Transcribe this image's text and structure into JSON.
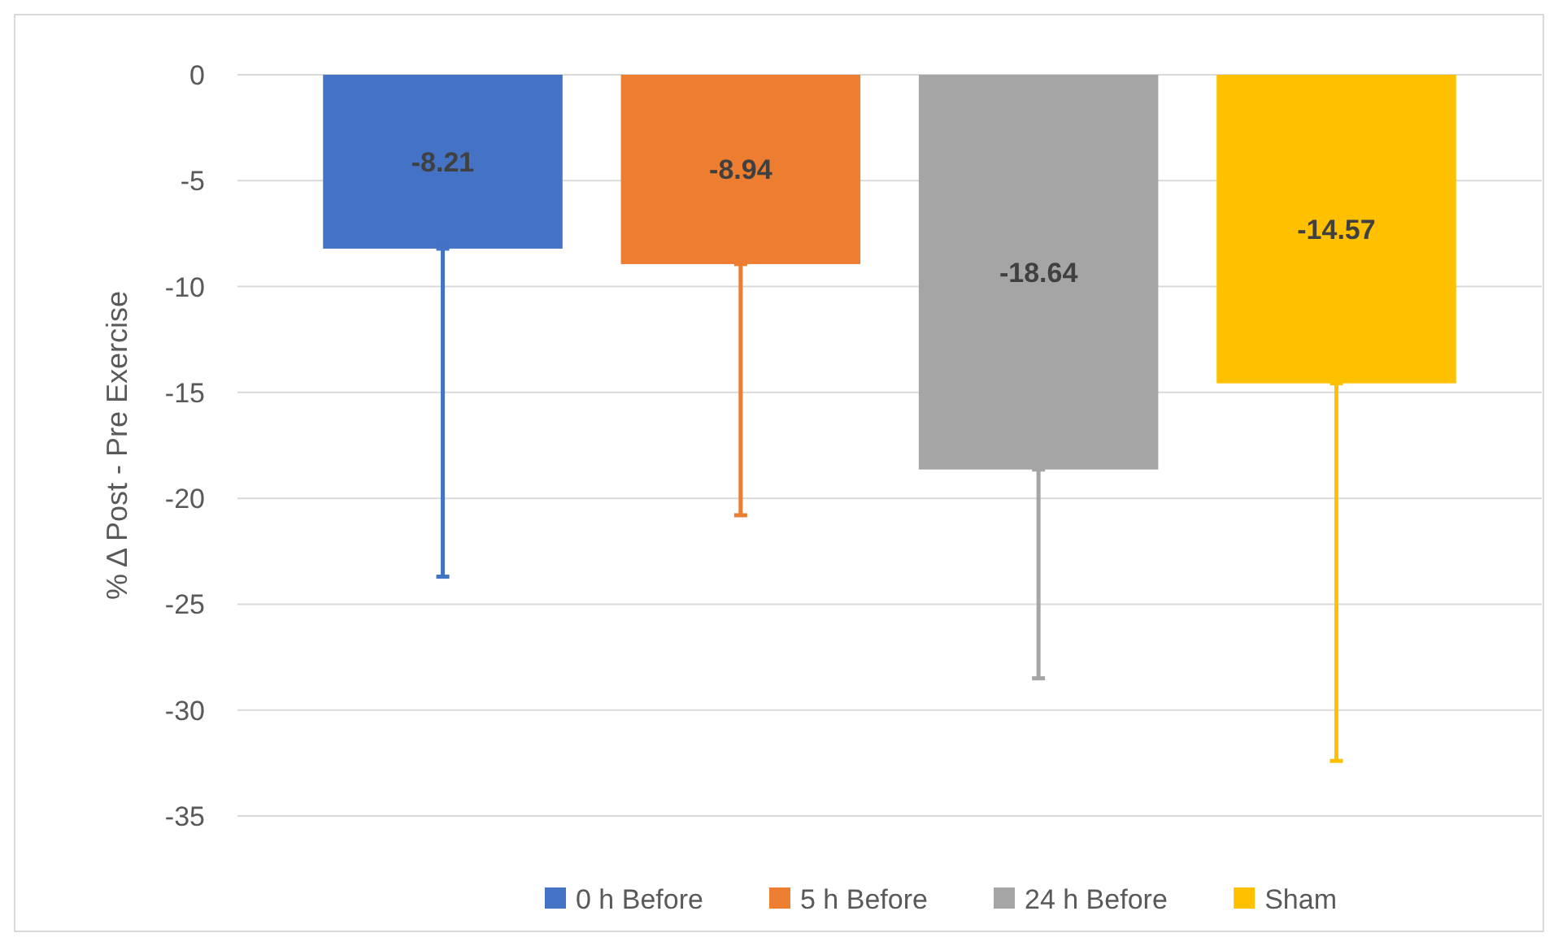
{
  "chart_data": {
    "type": "bar",
    "ylabel": "% Δ Post - Pre Exercise",
    "categories": [
      null
    ],
    "series": [
      {
        "name": "0 h Before",
        "color": "#4472c4",
        "values": [
          -8.21
        ],
        "errors": [
          [
            -23.7,
            -8.21
          ]
        ]
      },
      {
        "name": "5 h Before",
        "color": "#ed7d31",
        "values": [
          -8.94
        ],
        "errors": [
          [
            -20.8,
            -8.94
          ]
        ]
      },
      {
        "name": "24 h Before",
        "color": "#a5a5a5",
        "values": [
          -18.64
        ],
        "errors": [
          [
            -28.5,
            -18.64
          ]
        ]
      },
      {
        "name": "Sham",
        "color": "#ffc000",
        "values": [
          -14.57
        ],
        "errors": [
          [
            -32.4,
            -14.57
          ]
        ]
      }
    ],
    "ylim": [
      -35,
      0
    ],
    "yticks": [
      -35,
      -30,
      -25,
      -20,
      -15,
      -10,
      -5,
      0
    ],
    "grid": "y",
    "legend": "bottom",
    "data_labels": true
  }
}
